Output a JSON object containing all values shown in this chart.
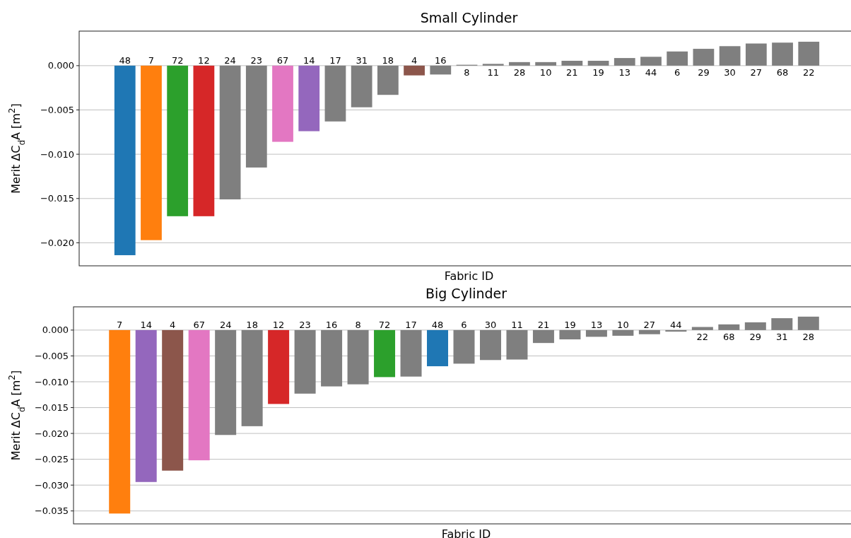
{
  "chart_data": [
    {
      "type": "bar",
      "title": "Small Cylinder",
      "xlabel": "Fabric ID",
      "ylabel": "Merit ΔC$_{d}$A [m$^{2}$]",
      "categories": [
        "48",
        "7",
        "72",
        "12",
        "24",
        "23",
        "67",
        "14",
        "17",
        "31",
        "18",
        "4",
        "16",
        "8",
        "11",
        "28",
        "10",
        "21",
        "19",
        "13",
        "44",
        "6",
        "29",
        "30",
        "27",
        "68",
        "22"
      ],
      "values": [
        -0.0214,
        -0.0197,
        -0.017,
        -0.017,
        -0.0151,
        -0.0115,
        -0.0086,
        -0.0074,
        -0.0063,
        -0.0047,
        -0.0033,
        -0.0011,
        -0.001,
        0.0001,
        0.0002,
        0.0004,
        0.0004,
        0.00055,
        0.00055,
        0.00086,
        0.001,
        0.0016,
        0.0019,
        0.0022,
        0.0025,
        0.0026,
        0.0027
      ],
      "colors": [
        "#1f77b4",
        "#ff7f0e",
        "#2ca02c",
        "#d62728",
        "#7f7f7f",
        "#7f7f7f",
        "#e377c2",
        "#9467bd",
        "#7f7f7f",
        "#7f7f7f",
        "#7f7f7f",
        "#8c564b",
        "#7f7f7f",
        "#7f7f7f",
        "#7f7f7f",
        "#7f7f7f",
        "#7f7f7f",
        "#7f7f7f",
        "#7f7f7f",
        "#7f7f7f",
        "#7f7f7f",
        "#7f7f7f",
        "#7f7f7f",
        "#7f7f7f",
        "#7f7f7f",
        "#7f7f7f",
        "#7f7f7f"
      ],
      "ylim": [
        -0.0226,
        0.0039
      ],
      "yticks": [
        {
          "value": 0,
          "label": "0.000"
        },
        {
          "value": -0.005,
          "label": "−0.005"
        },
        {
          "value": -0.01,
          "label": "−0.010"
        },
        {
          "value": -0.015,
          "label": "−0.015"
        },
        {
          "value": -0.02,
          "label": "−0.020"
        }
      ],
      "grid": "y"
    },
    {
      "type": "bar",
      "title": "Big Cylinder",
      "xlabel": "Fabric ID",
      "ylabel": "Merit ΔC$_{d}$A [m$^{2}$]",
      "categories": [
        "7",
        "14",
        "4",
        "67",
        "24",
        "18",
        "12",
        "23",
        "16",
        "8",
        "72",
        "17",
        "48",
        "6",
        "30",
        "11",
        "21",
        "19",
        "13",
        "10",
        "27",
        "44",
        "22",
        "68",
        "29",
        "31",
        "28"
      ],
      "values": [
        -0.0355,
        -0.0294,
        -0.0272,
        -0.0252,
        -0.0203,
        -0.0186,
        -0.0143,
        -0.0123,
        -0.0109,
        -0.0105,
        -0.0091,
        -0.009,
        -0.007,
        -0.0065,
        -0.0058,
        -0.0057,
        -0.0025,
        -0.0018,
        -0.0013,
        -0.0011,
        -0.0008,
        -0.0003,
        0.0006,
        0.0011,
        0.0015,
        0.0023,
        0.0026
      ],
      "colors": [
        "#ff7f0e",
        "#9467bd",
        "#8c564b",
        "#e377c2",
        "#7f7f7f",
        "#7f7f7f",
        "#d62728",
        "#7f7f7f",
        "#7f7f7f",
        "#7f7f7f",
        "#2ca02c",
        "#7f7f7f",
        "#1f77b4",
        "#7f7f7f",
        "#7f7f7f",
        "#7f7f7f",
        "#7f7f7f",
        "#7f7f7f",
        "#7f7f7f",
        "#7f7f7f",
        "#7f7f7f",
        "#7f7f7f",
        "#7f7f7f",
        "#7f7f7f",
        "#7f7f7f",
        "#7f7f7f",
        "#7f7f7f"
      ],
      "ylim": [
        -0.0375,
        0.0045
      ],
      "yticks": [
        {
          "value": 0,
          "label": "0.000"
        },
        {
          "value": -0.005,
          "label": "−0.005"
        },
        {
          "value": -0.01,
          "label": "−0.010"
        },
        {
          "value": -0.015,
          "label": "−0.015"
        },
        {
          "value": -0.02,
          "label": "−0.020"
        },
        {
          "value": -0.025,
          "label": "−0.025"
        },
        {
          "value": -0.03,
          "label": "−0.030"
        },
        {
          "value": -0.035,
          "label": "−0.035"
        }
      ],
      "grid": "y"
    }
  ]
}
